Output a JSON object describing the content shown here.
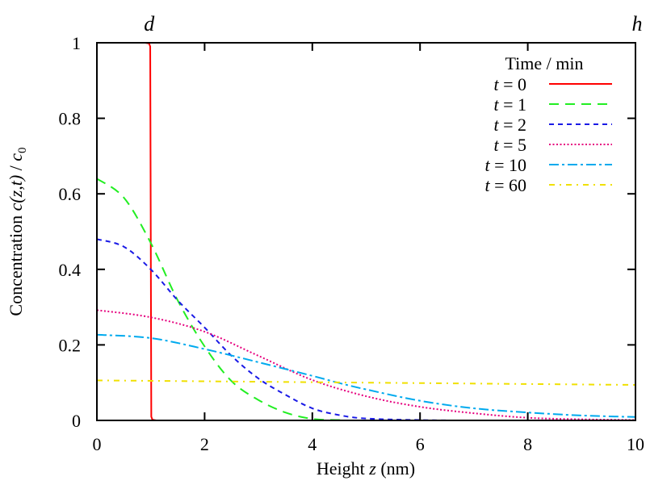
{
  "chart_data": {
    "type": "line",
    "xlabel": {
      "pre": "Height ",
      "var": "z",
      "post": " (nm)"
    },
    "ylabel": {
      "pre": "Concentration ",
      "var": "c(z,t)",
      "mid": " / ",
      "var2": "c",
      "sub": "0"
    },
    "xlim": [
      0,
      10
    ],
    "ylim": [
      0,
      1
    ],
    "xticks": [
      0,
      2,
      4,
      6,
      8,
      10
    ],
    "yticks": [
      0,
      0.2,
      0.4,
      0.6,
      0.8,
      1
    ],
    "ytick_labels": [
      "0",
      "0.2",
      "0.4",
      "0.6",
      "0.8",
      "1"
    ],
    "grid": false,
    "top_markers": [
      {
        "label": "d",
        "x": 1
      },
      {
        "label": "h",
        "x": 10
      }
    ],
    "legend": {
      "title": "Time / min",
      "position": "top-right"
    },
    "series": [
      {
        "name": "t = 0",
        "color": "#ff0000",
        "dash": "solid",
        "x": [
          0,
          0.9,
          0.97,
          0.99,
          1.0,
          1.01,
          1.03,
          1.1,
          10
        ],
        "y": [
          1,
          1,
          0.998,
          0.99,
          0.5,
          0.01,
          0.002,
          0,
          0
        ]
      },
      {
        "name": "t = 1",
        "color": "#22ee22",
        "dash": "dashed",
        "x": [
          0,
          0.5,
          1,
          1.5,
          2,
          2.5,
          3,
          3.5,
          4,
          4.5,
          5,
          10
        ],
        "y": [
          0.64,
          0.59,
          0.47,
          0.318,
          0.196,
          0.104,
          0.054,
          0.021,
          0.004,
          0.001,
          0,
          0
        ]
      },
      {
        "name": "t = 2",
        "color": "#1a1ae6",
        "dash": "short-dashed",
        "x": [
          0,
          0.5,
          1,
          1.5,
          2,
          2.5,
          3,
          3.5,
          4,
          4.5,
          5,
          6,
          7,
          10
        ],
        "y": [
          0.48,
          0.46,
          0.4,
          0.318,
          0.246,
          0.171,
          0.111,
          0.068,
          0.032,
          0.014,
          0.005,
          0.001,
          0,
          0
        ]
      },
      {
        "name": "t = 5",
        "color": "#e6007e",
        "dash": "dotted",
        "x": [
          0,
          1,
          2,
          3,
          4,
          5,
          6,
          7,
          8,
          9,
          10
        ],
        "y": [
          0.292,
          0.273,
          0.235,
          0.171,
          0.107,
          0.064,
          0.036,
          0.019,
          0.007,
          0.003,
          0.001
        ]
      },
      {
        "name": "t = 10",
        "color": "#00aaee",
        "dash": "dash-dot",
        "x": [
          0,
          1,
          2,
          3,
          4,
          4.5,
          5,
          6,
          7,
          8,
          9,
          10
        ],
        "y": [
          0.227,
          0.218,
          0.189,
          0.154,
          0.118,
          0.099,
          0.082,
          0.052,
          0.032,
          0.021,
          0.013,
          0.009
        ]
      },
      {
        "name": "t = 60",
        "color": "#f0e000",
        "dash": "dash-dot-dot",
        "x": [
          0,
          10
        ],
        "y": [
          0.106,
          0.094
        ]
      }
    ]
  }
}
